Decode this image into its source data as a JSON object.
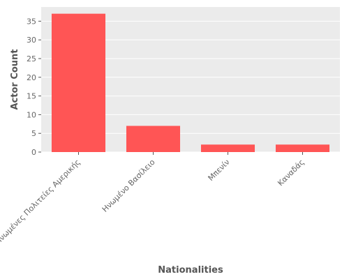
{
  "chart_data": {
    "type": "bar",
    "categories": [
      "Ηνωμένες Πολιτείες Αμερικής",
      "Ηνωμένο Βασίλειο",
      "Μπενίν",
      "Καναδάς"
    ],
    "values": [
      37,
      7,
      2,
      2
    ],
    "title": "",
    "xlabel": "Nationalities",
    "ylabel": "Actor Count",
    "ylim": [
      0,
      38.8
    ],
    "yticks": [
      0,
      5,
      10,
      15,
      20,
      25,
      30,
      35
    ],
    "grid": true,
    "bar_color": "#ff5555",
    "background_color": "#ebebeb",
    "grid_color": "#ffffff"
  }
}
